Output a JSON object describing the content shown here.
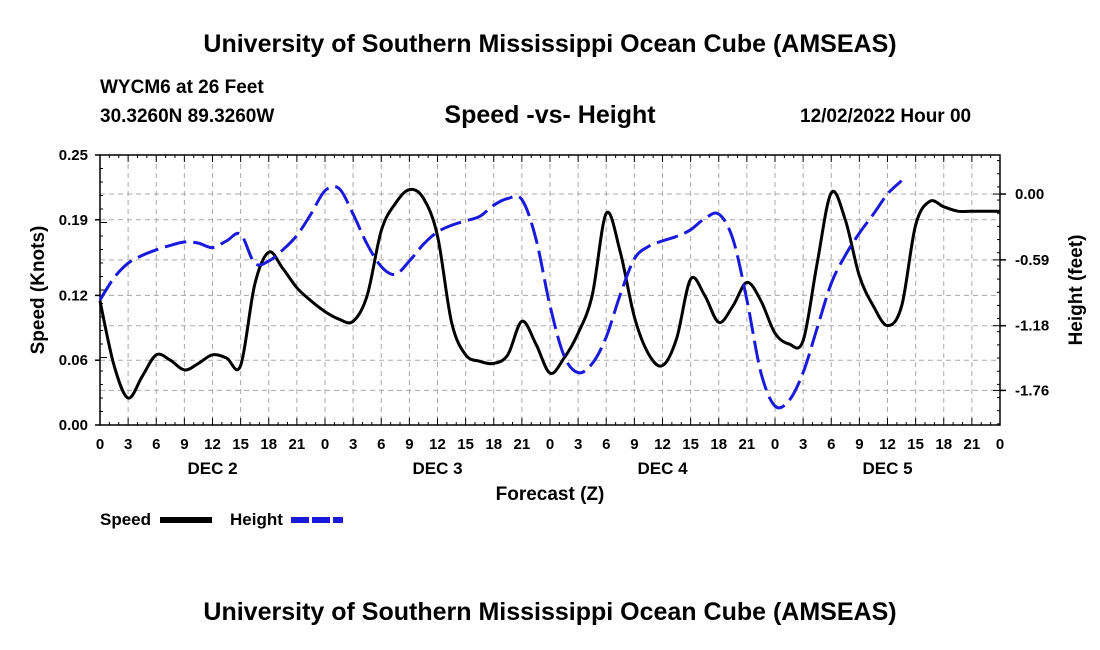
{
  "header": {
    "title": "University of Southern Mississippi Ocean Cube (AMSEAS)",
    "station": "WYCM6 at 26 Feet",
    "coords": "30.3260N  89.3260W",
    "subtitle": "Speed -vs- Height",
    "datetime": "12/02/2022 Hour 00"
  },
  "footer": {
    "title": "University of Southern Mississippi Ocean Cube (AMSEAS)"
  },
  "colors": {
    "speed": "#000000",
    "height": "#1a1adc",
    "grid": "#aaaaaa"
  },
  "chart_data": {
    "type": "line",
    "xlabel": "Forecast (Z)",
    "ylabel": "Speed (Knots)",
    "ylabel_right": "Height (feet)",
    "x_range": [
      0,
      96
    ],
    "x_ticks": [
      0,
      3,
      6,
      9,
      12,
      15,
      18,
      21,
      24,
      27,
      30,
      33,
      36,
      39,
      42,
      45,
      48,
      51,
      54,
      57,
      60,
      63,
      66,
      69,
      72,
      75,
      78,
      81,
      84,
      87,
      90,
      93,
      96
    ],
    "x_tick_labels": [
      "0",
      "3",
      "6",
      "9",
      "12",
      "15",
      "18",
      "21",
      "0",
      "3",
      "6",
      "9",
      "12",
      "15",
      "18",
      "21",
      "0",
      "3",
      "6",
      "9",
      "12",
      "15",
      "18",
      "21",
      "0",
      "3",
      "6",
      "9",
      "12",
      "15",
      "18",
      "21",
      "0"
    ],
    "day_labels": [
      {
        "x": 12,
        "label": "DEC 2"
      },
      {
        "x": 36,
        "label": "DEC 3"
      },
      {
        "x": 60,
        "label": "DEC 4"
      },
      {
        "x": 84,
        "label": "DEC 5"
      }
    ],
    "y_left": {
      "range": [
        0,
        0.25
      ],
      "ticks": [
        0,
        0.06,
        0.12,
        0.19,
        0.25
      ],
      "labels": [
        "0.00",
        "0.06",
        "0.12",
        "0.19",
        "0.25"
      ]
    },
    "y_right": {
      "range": [
        -2.07,
        0.35
      ],
      "ticks": [
        0.0,
        -0.59,
        -1.18,
        -1.76
      ],
      "labels": [
        "0.00",
        "-0.59",
        "-1.18",
        "-1.76"
      ]
    },
    "series": [
      {
        "name": "Speed",
        "axis": "left",
        "style": "solid",
        "points": [
          [
            0,
            0.115
          ],
          [
            1.5,
            0.055
          ],
          [
            3,
            0.025
          ],
          [
            4.5,
            0.045
          ],
          [
            6,
            0.065
          ],
          [
            7.5,
            0.06
          ],
          [
            9,
            0.051
          ],
          [
            10.5,
            0.057
          ],
          [
            12,
            0.065
          ],
          [
            13.5,
            0.062
          ],
          [
            15,
            0.055
          ],
          [
            16.5,
            0.13
          ],
          [
            18,
            0.16
          ],
          [
            19.5,
            0.145
          ],
          [
            21,
            0.127
          ],
          [
            22.5,
            0.115
          ],
          [
            24,
            0.105
          ],
          [
            25.5,
            0.098
          ],
          [
            27,
            0.096
          ],
          [
            28.5,
            0.12
          ],
          [
            30,
            0.18
          ],
          [
            31.5,
            0.205
          ],
          [
            33,
            0.218
          ],
          [
            34.5,
            0.21
          ],
          [
            36,
            0.175
          ],
          [
            37.5,
            0.095
          ],
          [
            39,
            0.065
          ],
          [
            40.5,
            0.059
          ],
          [
            42,
            0.057
          ],
          [
            43.5,
            0.065
          ],
          [
            45,
            0.096
          ],
          [
            46.5,
            0.075
          ],
          [
            48,
            0.048
          ],
          [
            49.5,
            0.062
          ],
          [
            51,
            0.085
          ],
          [
            52.5,
            0.12
          ],
          [
            54,
            0.196
          ],
          [
            55.5,
            0.16
          ],
          [
            57,
            0.1
          ],
          [
            58.5,
            0.066
          ],
          [
            60,
            0.055
          ],
          [
            61.5,
            0.08
          ],
          [
            63,
            0.135
          ],
          [
            64.5,
            0.12
          ],
          [
            66,
            0.095
          ],
          [
            67.5,
            0.11
          ],
          [
            69,
            0.132
          ],
          [
            70.5,
            0.115
          ],
          [
            72,
            0.085
          ],
          [
            73.5,
            0.075
          ],
          [
            75,
            0.078
          ],
          [
            76.5,
            0.15
          ],
          [
            78,
            0.215
          ],
          [
            79.5,
            0.19
          ],
          [
            81,
            0.138
          ],
          [
            82.5,
            0.11
          ],
          [
            84,
            0.092
          ],
          [
            85.5,
            0.11
          ],
          [
            87,
            0.185
          ],
          [
            88.5,
            0.207
          ],
          [
            90,
            0.202
          ],
          [
            91.5,
            0.198
          ],
          [
            93,
            0.198
          ],
          [
            94.5,
            0.198
          ],
          [
            96,
            0.198
          ]
        ]
      },
      {
        "name": "Height",
        "axis": "right",
        "style": "dashed",
        "points": [
          [
            0,
            -0.95
          ],
          [
            1.5,
            -0.75
          ],
          [
            3,
            -0.62
          ],
          [
            4.5,
            -0.55
          ],
          [
            6,
            -0.5
          ],
          [
            7.5,
            -0.46
          ],
          [
            9,
            -0.43
          ],
          [
            10.5,
            -0.44
          ],
          [
            12,
            -0.48
          ],
          [
            13.5,
            -0.42
          ],
          [
            15,
            -0.36
          ],
          [
            16.5,
            -0.62
          ],
          [
            18,
            -0.6
          ],
          [
            19.5,
            -0.5
          ],
          [
            21,
            -0.37
          ],
          [
            22.5,
            -0.18
          ],
          [
            24,
            0.03
          ],
          [
            25.5,
            0.05
          ],
          [
            27,
            -0.18
          ],
          [
            28.5,
            -0.45
          ],
          [
            30,
            -0.65
          ],
          [
            31.5,
            -0.72
          ],
          [
            33,
            -0.6
          ],
          [
            34.5,
            -0.45
          ],
          [
            36,
            -0.34
          ],
          [
            37.5,
            -0.28
          ],
          [
            39,
            -0.24
          ],
          [
            40.5,
            -0.2
          ],
          [
            42,
            -0.1
          ],
          [
            43.5,
            -0.04
          ],
          [
            45,
            -0.05
          ],
          [
            46.5,
            -0.4
          ],
          [
            48,
            -1.0
          ],
          [
            49.5,
            -1.45
          ],
          [
            51,
            -1.6
          ],
          [
            52.5,
            -1.52
          ],
          [
            54,
            -1.28
          ],
          [
            55.5,
            -0.9
          ],
          [
            57,
            -0.58
          ],
          [
            58.5,
            -0.47
          ],
          [
            60,
            -0.42
          ],
          [
            61.5,
            -0.38
          ],
          [
            63,
            -0.32
          ],
          [
            64.5,
            -0.22
          ],
          [
            66,
            -0.18
          ],
          [
            67.5,
            -0.4
          ],
          [
            69,
            -0.95
          ],
          [
            70.5,
            -1.6
          ],
          [
            72,
            -1.9
          ],
          [
            73.5,
            -1.85
          ],
          [
            75,
            -1.6
          ],
          [
            76.5,
            -1.2
          ],
          [
            78,
            -0.8
          ],
          [
            79.5,
            -0.55
          ],
          [
            81,
            -0.35
          ],
          [
            82.5,
            -0.18
          ],
          [
            84,
            0.0
          ],
          [
            85.5,
            0.12
          ]
        ]
      }
    ],
    "legend": [
      {
        "name": "Speed",
        "style": "solid"
      },
      {
        "name": "Height",
        "style": "dashed"
      }
    ]
  }
}
